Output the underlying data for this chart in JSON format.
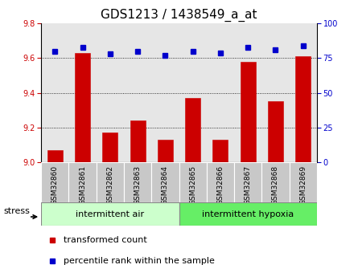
{
  "title": "GDS1213 / 1438549_a_at",
  "categories": [
    "GSM32860",
    "GSM32861",
    "GSM32862",
    "GSM32863",
    "GSM32864",
    "GSM32865",
    "GSM32866",
    "GSM32867",
    "GSM32868",
    "GSM32869"
  ],
  "red_values": [
    9.07,
    9.63,
    9.17,
    9.24,
    9.13,
    9.37,
    9.13,
    9.58,
    9.35,
    9.61
  ],
  "blue_values": [
    80,
    83,
    78,
    80,
    77,
    80,
    79,
    83,
    81,
    84
  ],
  "ylim_left": [
    9.0,
    9.8
  ],
  "ylim_right": [
    0,
    100
  ],
  "yticks_left": [
    9.0,
    9.2,
    9.4,
    9.6,
    9.8
  ],
  "yticks_right": [
    0,
    25,
    50,
    75,
    100
  ],
  "group1_label": "intermittent air",
  "group2_label": "intermittent hypoxia",
  "group1_count": 5,
  "group2_count": 5,
  "stress_label": "stress",
  "legend1": "transformed count",
  "legend2": "percentile rank within the sample",
  "red_color": "#cc0000",
  "blue_color": "#0000cc",
  "col_bg_color": "#c8c8c8",
  "group1_color": "#ccffcc",
  "group2_color": "#66ee66",
  "title_fontsize": 11,
  "tick_fontsize": 7,
  "label_fontsize": 8,
  "bar_width": 0.55
}
